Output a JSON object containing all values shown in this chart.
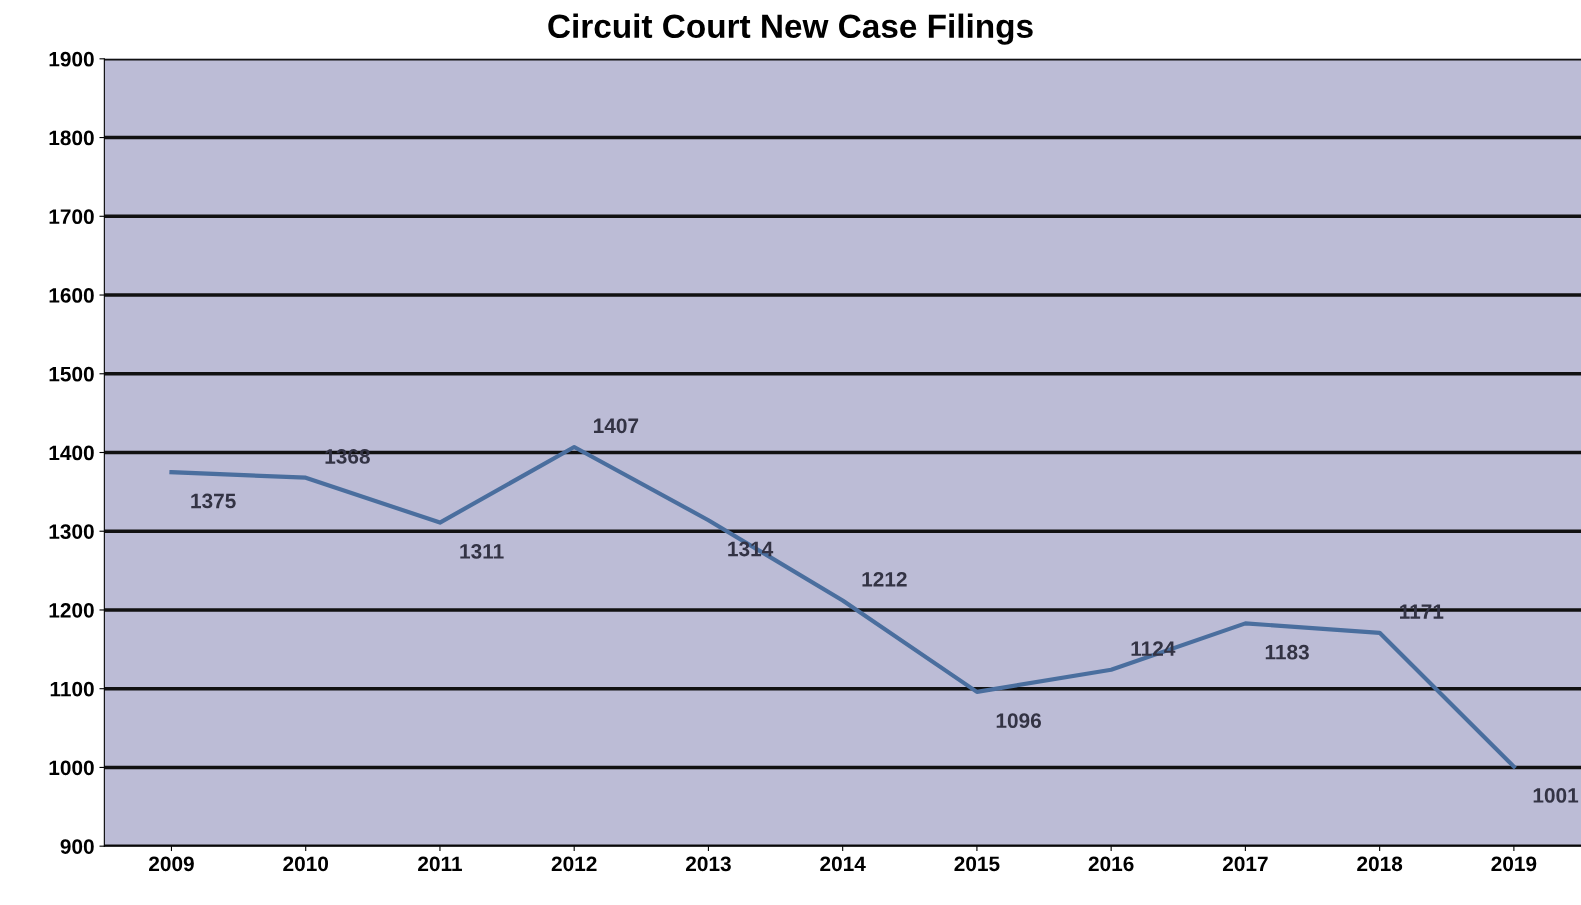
{
  "chart_data": {
    "type": "line",
    "title": "Circuit Court New Case Filings",
    "categories": [
      "2009",
      "2010",
      "2011",
      "2012",
      "2013",
      "2014",
      "2015",
      "2016",
      "2017",
      "2018",
      "2019"
    ],
    "series": [
      {
        "color": "#4a6e9e",
        "values": [
          1375,
          1368,
          1311,
          1407,
          1314,
          1212,
          1096,
          1124,
          1183,
          1171,
          1001
        ]
      }
    ],
    "ylim": [
      900,
      1900
    ],
    "yticks": [
      900,
      1000,
      1100,
      1200,
      1300,
      1400,
      1500,
      1600,
      1700,
      1800,
      1900
    ],
    "grid": "y",
    "data_labels": true,
    "marker": "none",
    "line_style": "solid"
  }
}
